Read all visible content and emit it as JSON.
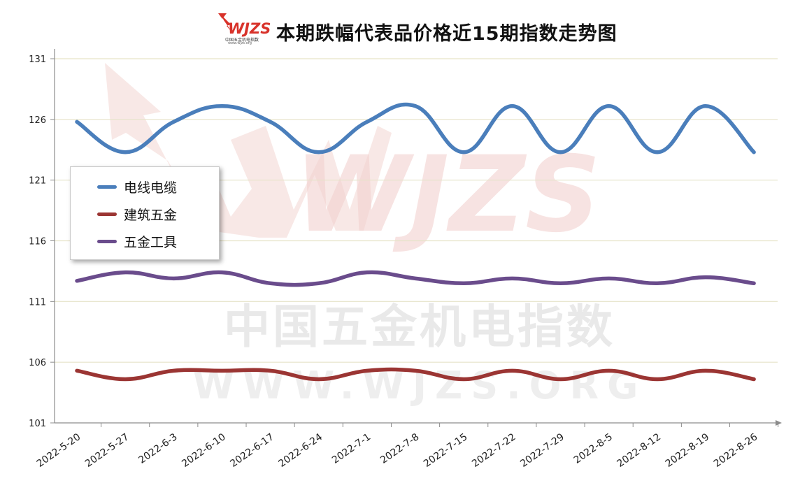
{
  "title": "本期跌幅代表品价格近15期指数走势图",
  "logo": {
    "text": "WJZS",
    "subtitle": "中国五金机电指数",
    "url": "www.wjzs.org"
  },
  "watermark": {
    "line1": "中国五金机电指数",
    "line2": "WWW.WJZS.ORG"
  },
  "colors": {
    "series1": "#4a7ebb",
    "series2": "#9b3533",
    "series3": "#6a4c8c",
    "grid": "#e6e3c8",
    "axis": "#8c8c8c"
  },
  "chart_data": {
    "type": "line",
    "title": "本期跌幅代表品价格近15期指数走势图",
    "xlabel": "",
    "ylabel": "",
    "x": [
      "2022-5-20",
      "2022-5-27",
      "2022-6-3",
      "2022-6-10",
      "2022-6-17",
      "2022-6-24",
      "2022-7-1",
      "2022-7-8",
      "2022-7-15",
      "2022-7-22",
      "2022-7-29",
      "2022-8-5",
      "2022-8-12",
      "2022-8-19",
      "2022-8-26"
    ],
    "ylim": [
      101,
      131
    ],
    "yticks": [
      101,
      106,
      111,
      116,
      121,
      126,
      131
    ],
    "grid": true,
    "smooth": true,
    "legend_position": "left-middle",
    "series": [
      {
        "name": "电线电缆",
        "values": [
          125.8,
          123.3,
          125.8,
          127.1,
          125.8,
          123.3,
          125.8,
          127.1,
          123.3,
          127.1,
          123.3,
          127.1,
          123.3,
          127.1,
          123.3
        ]
      },
      {
        "name": "建筑五金",
        "values": [
          105.3,
          104.6,
          105.3,
          105.3,
          105.3,
          104.6,
          105.3,
          105.3,
          104.6,
          105.3,
          104.6,
          105.3,
          104.6,
          105.3,
          104.6
        ]
      },
      {
        "name": "五金工具",
        "values": [
          112.7,
          113.4,
          112.9,
          113.4,
          112.5,
          112.5,
          113.4,
          112.9,
          112.5,
          112.9,
          112.5,
          112.9,
          112.5,
          113.0,
          112.5
        ]
      }
    ]
  }
}
